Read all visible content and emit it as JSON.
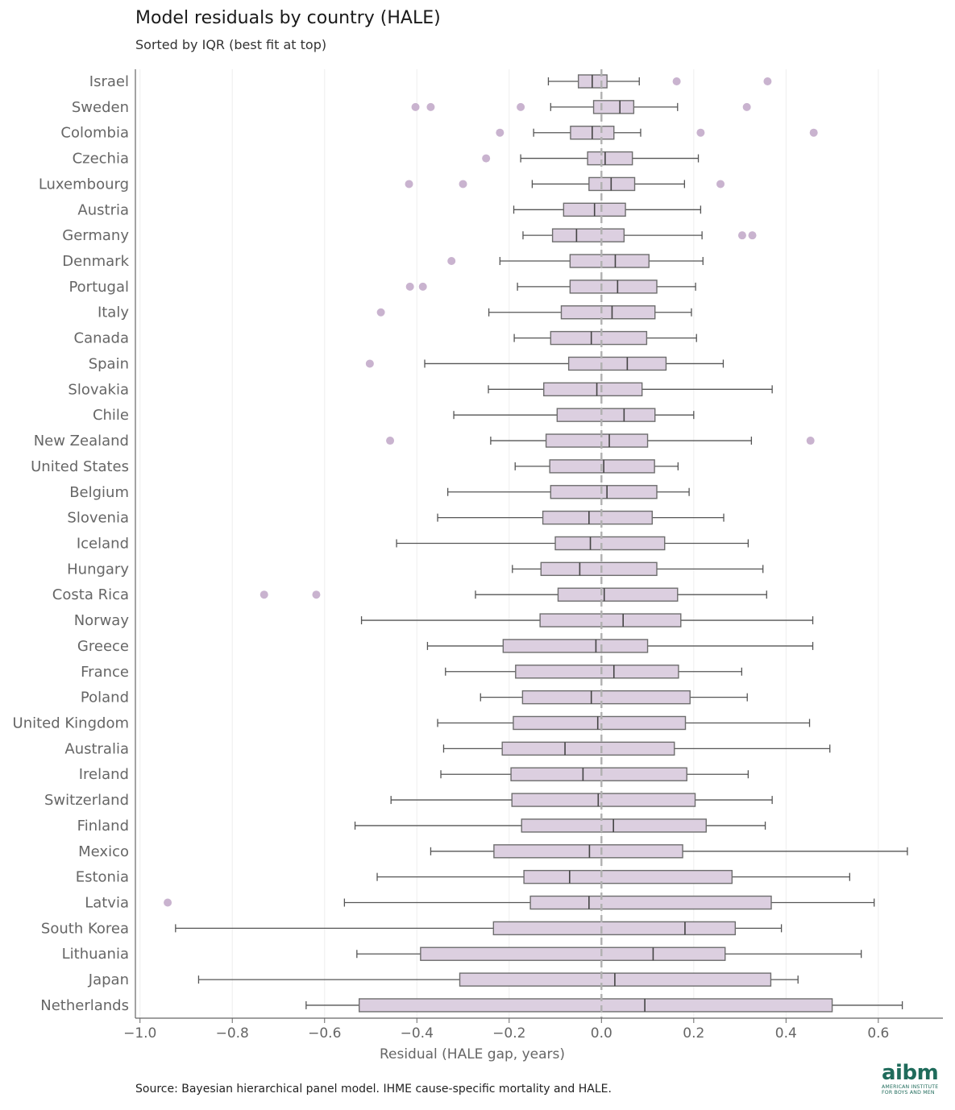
{
  "header": {
    "title": "Model residuals by country (HALE)",
    "subtitle": "Sorted by IQR (best fit at top)"
  },
  "footer": {
    "source": "Source: Bayesian hierarchical panel model. IHME cause-specific mortality and HALE.",
    "logo_text": "aibm",
    "logo_subtext_1": "AMERICAN INSTITUTE",
    "logo_subtext_2": "FOR BOYS AND MEN"
  },
  "colors": {
    "box_fill": "#dccfe0",
    "box_stroke": "#6e6e6e",
    "outlier": "#c9b3cf",
    "reference_line": "#b0b0b0",
    "grid": "#eeeeee",
    "axis": "#666666"
  },
  "chart_data": {
    "type": "boxplot",
    "orientation": "horizontal",
    "title": "Model residuals by country (HALE)",
    "subtitle": "Sorted by IQR (best fit at top)",
    "xlabel": "Residual (HALE gap, years)",
    "ylabel": "",
    "xlim": [
      -1.01,
      0.74
    ],
    "xticks": [
      -1.0,
      -0.8,
      -0.6,
      -0.4,
      -0.2,
      0.0,
      0.2,
      0.4,
      0.6
    ],
    "xtick_labels": [
      "−1.0",
      "−0.8",
      "−0.6",
      "−0.4",
      "−0.2",
      "0.0",
      "0.2",
      "0.4",
      "0.6"
    ],
    "reference_line_x": 0.0,
    "vertical_grid": true,
    "series": [
      {
        "name": "Israel",
        "whisker_low": -0.115,
        "q1": -0.05,
        "median": -0.02,
        "q3": 0.012,
        "whisker_high": 0.082,
        "outliers": [
          0.163,
          0.36
        ]
      },
      {
        "name": "Sweden",
        "whisker_low": -0.11,
        "q1": -0.017,
        "median": 0.04,
        "q3": 0.07,
        "whisker_high": 0.165,
        "outliers": [
          -0.403,
          -0.37,
          -0.175,
          0.315
        ]
      },
      {
        "name": "Colombia",
        "whisker_low": -0.147,
        "q1": -0.067,
        "median": -0.02,
        "q3": 0.027,
        "whisker_high": 0.085,
        "outliers": [
          -0.22,
          0.215,
          0.46
        ]
      },
      {
        "name": "Czechia",
        "whisker_low": -0.175,
        "q1": -0.03,
        "median": 0.008,
        "q3": 0.067,
        "whisker_high": 0.21,
        "outliers": [
          -0.25
        ]
      },
      {
        "name": "Luxembourg",
        "whisker_low": -0.15,
        "q1": -0.027,
        "median": 0.021,
        "q3": 0.072,
        "whisker_high": 0.18,
        "outliers": [
          -0.417,
          -0.3,
          0.258
        ]
      },
      {
        "name": "Austria",
        "whisker_low": -0.19,
        "q1": -0.082,
        "median": -0.015,
        "q3": 0.052,
        "whisker_high": 0.215,
        "outliers": []
      },
      {
        "name": "Germany",
        "whisker_low": -0.17,
        "q1": -0.106,
        "median": -0.054,
        "q3": 0.049,
        "whisker_high": 0.218,
        "outliers": [
          0.305,
          0.327
        ]
      },
      {
        "name": "Denmark",
        "whisker_low": -0.22,
        "q1": -0.068,
        "median": 0.03,
        "q3": 0.103,
        "whisker_high": 0.22,
        "outliers": [
          -0.325
        ]
      },
      {
        "name": "Portugal",
        "whisker_low": -0.182,
        "q1": -0.068,
        "median": 0.035,
        "q3": 0.12,
        "whisker_high": 0.204,
        "outliers": [
          -0.415,
          -0.387
        ]
      },
      {
        "name": "Italy",
        "whisker_low": -0.244,
        "q1": -0.087,
        "median": 0.023,
        "q3": 0.116,
        "whisker_high": 0.195,
        "outliers": [
          -0.478
        ]
      },
      {
        "name": "Canada",
        "whisker_low": -0.189,
        "q1": -0.11,
        "median": -0.022,
        "q3": 0.098,
        "whisker_high": 0.206,
        "outliers": []
      },
      {
        "name": "Spain",
        "whisker_low": -0.383,
        "q1": -0.071,
        "median": 0.056,
        "q3": 0.14,
        "whisker_high": 0.264,
        "outliers": [
          -0.502
        ]
      },
      {
        "name": "Slovakia",
        "whisker_low": -0.245,
        "q1": -0.125,
        "median": -0.01,
        "q3": 0.088,
        "whisker_high": 0.37,
        "outliers": []
      },
      {
        "name": "Chile",
        "whisker_low": -0.32,
        "q1": -0.096,
        "median": 0.049,
        "q3": 0.116,
        "whisker_high": 0.2,
        "outliers": []
      },
      {
        "name": "New Zealand",
        "whisker_low": -0.24,
        "q1": -0.12,
        "median": 0.017,
        "q3": 0.1,
        "whisker_high": 0.325,
        "outliers": [
          -0.458,
          0.453
        ]
      },
      {
        "name": "United States",
        "whisker_low": -0.187,
        "q1": -0.112,
        "median": 0.005,
        "q3": 0.115,
        "whisker_high": 0.166,
        "outliers": []
      },
      {
        "name": "Belgium",
        "whisker_low": -0.333,
        "q1": -0.11,
        "median": 0.012,
        "q3": 0.12,
        "whisker_high": 0.19,
        "outliers": []
      },
      {
        "name": "Slovenia",
        "whisker_low": -0.355,
        "q1": -0.127,
        "median": -0.027,
        "q3": 0.11,
        "whisker_high": 0.265,
        "outliers": []
      },
      {
        "name": "Iceland",
        "whisker_low": -0.444,
        "q1": -0.1,
        "median": -0.024,
        "q3": 0.137,
        "whisker_high": 0.318,
        "outliers": []
      },
      {
        "name": "Hungary",
        "whisker_low": -0.193,
        "q1": -0.131,
        "median": -0.047,
        "q3": 0.12,
        "whisker_high": 0.35,
        "outliers": []
      },
      {
        "name": "Costa Rica",
        "whisker_low": -0.273,
        "q1": -0.094,
        "median": 0.006,
        "q3": 0.165,
        "whisker_high": 0.358,
        "outliers": [
          -0.731,
          -0.618
        ]
      },
      {
        "name": "Norway",
        "whisker_low": -0.52,
        "q1": -0.133,
        "median": 0.047,
        "q3": 0.172,
        "whisker_high": 0.458,
        "outliers": []
      },
      {
        "name": "Greece",
        "whisker_low": -0.377,
        "q1": -0.213,
        "median": -0.012,
        "q3": 0.1,
        "whisker_high": 0.458,
        "outliers": []
      },
      {
        "name": "France",
        "whisker_low": -0.338,
        "q1": -0.186,
        "median": 0.027,
        "q3": 0.167,
        "whisker_high": 0.304,
        "outliers": []
      },
      {
        "name": "Poland",
        "whisker_low": -0.262,
        "q1": -0.171,
        "median": -0.022,
        "q3": 0.192,
        "whisker_high": 0.316,
        "outliers": []
      },
      {
        "name": "United Kingdom",
        "whisker_low": -0.355,
        "q1": -0.191,
        "median": -0.008,
        "q3": 0.182,
        "whisker_high": 0.451,
        "outliers": []
      },
      {
        "name": "Australia",
        "whisker_low": -0.342,
        "q1": -0.215,
        "median": -0.079,
        "q3": 0.158,
        "whisker_high": 0.495,
        "outliers": []
      },
      {
        "name": "Ireland",
        "whisker_low": -0.348,
        "q1": -0.196,
        "median": -0.04,
        "q3": 0.185,
        "whisker_high": 0.318,
        "outliers": []
      },
      {
        "name": "Switzerland",
        "whisker_low": -0.456,
        "q1": -0.194,
        "median": -0.007,
        "q3": 0.203,
        "whisker_high": 0.37,
        "outliers": []
      },
      {
        "name": "Finland",
        "whisker_low": -0.534,
        "q1": -0.173,
        "median": 0.026,
        "q3": 0.227,
        "whisker_high": 0.355,
        "outliers": []
      },
      {
        "name": "Mexico",
        "whisker_low": -0.37,
        "q1": -0.233,
        "median": -0.026,
        "q3": 0.176,
        "whisker_high": 0.663,
        "outliers": []
      },
      {
        "name": "Estonia",
        "whisker_low": -0.486,
        "q1": -0.168,
        "median": -0.069,
        "q3": 0.283,
        "whisker_high": 0.538,
        "outliers": []
      },
      {
        "name": "Latvia",
        "whisker_low": -0.557,
        "q1": -0.154,
        "median": -0.027,
        "q3": 0.368,
        "whisker_high": 0.591,
        "outliers": [
          -0.94
        ]
      },
      {
        "name": "South Korea",
        "whisker_low": -0.923,
        "q1": -0.234,
        "median": 0.181,
        "q3": 0.29,
        "whisker_high": 0.39,
        "outliers": []
      },
      {
        "name": "Lithuania",
        "whisker_low": -0.53,
        "q1": -0.392,
        "median": 0.112,
        "q3": 0.268,
        "whisker_high": 0.563,
        "outliers": []
      },
      {
        "name": "Japan",
        "whisker_low": -0.873,
        "q1": -0.307,
        "median": 0.029,
        "q3": 0.367,
        "whisker_high": 0.426,
        "outliers": []
      },
      {
        "name": "Netherlands",
        "whisker_low": -0.64,
        "q1": -0.525,
        "median": 0.094,
        "q3": 0.5,
        "whisker_high": 0.652,
        "outliers": []
      }
    ]
  }
}
